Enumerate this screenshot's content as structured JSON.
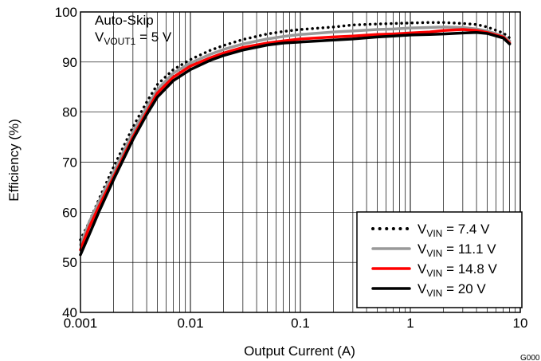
{
  "chart_data": {
    "type": "line",
    "xlabel": "Output Current (A)",
    "ylabel": "Efficiency (%)",
    "xscale": "log",
    "xlim": [
      0.001,
      10
    ],
    "ylim": [
      40,
      100
    ],
    "x_ticks": [
      "0.001",
      "0.01",
      "0.1",
      "1",
      "10"
    ],
    "y_ticks": [
      "40",
      "50",
      "60",
      "70",
      "80",
      "90",
      "100"
    ],
    "grid": true,
    "legend_position": "bottom-right",
    "annotation": {
      "line1": "Auto-Skip",
      "v": "V",
      "sub": "VOUT1",
      "rest": " = 5 V"
    },
    "figure_code": "G000",
    "x": [
      0.001,
      0.0012,
      0.0015,
      0.002,
      0.003,
      0.004,
      0.005,
      0.007,
      0.01,
      0.015,
      0.02,
      0.03,
      0.05,
      0.07,
      0.1,
      0.2,
      0.3,
      0.5,
      0.7,
      1,
      1.5,
      2,
      3,
      4,
      5,
      7,
      8
    ],
    "series": [
      {
        "legend_v": "V",
        "legend_sub": "VIN",
        "legend_rest": " = 7.4 V",
        "color": "#000000",
        "style": "dotted",
        "values": [
          54.5,
          58,
          63,
          69,
          77,
          82,
          85.5,
          88.5,
          90.5,
          92.3,
          93.3,
          94.5,
          95.6,
          96.1,
          96.5,
          97.0,
          97.4,
          97.6,
          97.7,
          97.8,
          97.9,
          97.9,
          97.7,
          97.5,
          97.0,
          95.8,
          94.8
        ]
      },
      {
        "legend_v": "V",
        "legend_sub": "VIN",
        "legend_rest": " = 11.1 V",
        "color": "#999999",
        "style": "solid",
        "values": [
          53.5,
          58,
          62.5,
          68,
          76,
          81,
          84.5,
          87.8,
          89.8,
          91.5,
          92.5,
          93.6,
          94.6,
          95.1,
          95.5,
          96.0,
          96.2,
          96.5,
          96.6,
          96.8,
          96.9,
          97.0,
          96.9,
          96.6,
          96.2,
          95.2,
          94.2
        ]
      },
      {
        "legend_v": "V",
        "legend_sub": "VIN",
        "legend_rest": " = 14.8 V",
        "color": "#ff0000",
        "style": "solid",
        "values": [
          52.5,
          57,
          61.5,
          67,
          75,
          80,
          83.8,
          87,
          89.2,
          90.8,
          91.8,
          92.9,
          93.8,
          94.2,
          94.6,
          95.0,
          95.2,
          95.5,
          95.6,
          95.8,
          96.0,
          96.3,
          96.5,
          96.3,
          95.9,
          95.0,
          93.8
        ]
      },
      {
        "legend_v": "V",
        "legend_sub": "VIN",
        "legend_rest": " = 20 V",
        "color": "#000000",
        "style": "solid",
        "values": [
          51.5,
          55.5,
          60.5,
          66.5,
          74.5,
          79.5,
          83,
          86.3,
          88.5,
          90.3,
          91.3,
          92.4,
          93.4,
          93.8,
          94.0,
          94.4,
          94.6,
          95.0,
          95.2,
          95.4,
          95.5,
          95.6,
          95.8,
          95.9,
          95.7,
          94.8,
          93.6
        ]
      }
    ]
  }
}
